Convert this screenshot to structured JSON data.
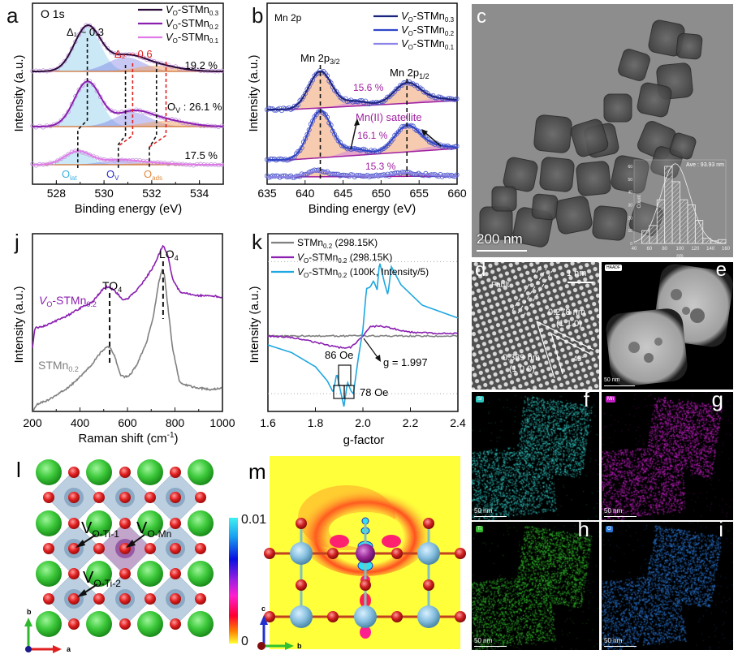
{
  "figure": {
    "panels": {
      "a": {
        "label": "a",
        "title": "O 1s"
      },
      "b": {
        "label": "b",
        "title": "Mn 2p"
      },
      "c": {
        "label": "c",
        "scalebar": "200 nm"
      },
      "d": {
        "label": "d",
        "fault": "Fault",
        "scalebar": "1 nm",
        "d1": "0.278 nm",
        "hkl1": "(1 1 0)",
        "d2": "0.389 nm",
        "hkl2": "(1 0 0)",
        "angle": "45°"
      },
      "e": {
        "label": "e",
        "tag": "HAADF",
        "scalebar": "50 nm"
      },
      "f": {
        "label": "f",
        "tag": "Sr",
        "scalebar": "50 nm",
        "color": "#2ec4c0"
      },
      "g": {
        "label": "g",
        "tag": "Mn",
        "scalebar": "50 nm",
        "color": "#c01fc0"
      },
      "h": {
        "label": "h",
        "tag": "Ti",
        "scalebar": "50 nm",
        "color": "#2fb82a"
      },
      "i": {
        "label": "i",
        "tag": "O",
        "scalebar": "50 nm",
        "color": "#2a78d8"
      },
      "j": {
        "label": "j"
      },
      "k": {
        "label": "k"
      },
      "l": {
        "label": "l",
        "vac1": "V",
        "vac1_sub": "O-Ti-1",
        "vac2": "V",
        "vac2_sub": "O-Mn",
        "vac3": "V",
        "vac3_sub": "O-Ti-2",
        "axis_b": "b",
        "axis_a": "a"
      },
      "m": {
        "label": "m",
        "cbar_max": "0.01",
        "cbar_min": "0",
        "axis_c": "c",
        "axis_b": "b"
      }
    }
  },
  "chart_data": [
    {
      "id": "a",
      "type": "line",
      "title": "O 1s",
      "xlabel": "Binding energy (eV)",
      "ylabel": "Intensity (a.u.)",
      "xlim": [
        527,
        535
      ],
      "xticks": [
        "528",
        "530",
        "532",
        "534"
      ],
      "xtick_values": [
        528,
        530,
        532,
        534
      ],
      "legend": [
        {
          "name": "VO-STMn0.3",
          "main": "V",
          "sub1": "O",
          "mid": "-STMn",
          "sub2": "0.3",
          "color": "#2a0a3a"
        },
        {
          "name": "VO-STMn0.2",
          "main": "V",
          "sub1": "O",
          "mid": "-STMn",
          "sub2": "0.2",
          "color": "#8a1fb0"
        },
        {
          "name": "VO-STMn0.1",
          "main": "V",
          "sub1": "O",
          "mid": "-STMn",
          "sub2": "0.1",
          "color": "#e07ae8"
        }
      ],
      "legend_position": "top-right",
      "series": [
        {
          "name": "VO-STMn0.3",
          "offset": 2,
          "O_lat": 529.3,
          "O_V": 530.9,
          "O_ads": 532.2,
          "peak_height": 1.0,
          "color": "#2a0a3a"
        },
        {
          "name": "VO-STMn0.2",
          "offset": 1,
          "O_lat": 529.3,
          "O_V": 531.2,
          "O_ads": 532.6,
          "peak_height": 1.0,
          "color": "#8a1fb0"
        },
        {
          "name": "VO-STMn0.1",
          "offset": 0,
          "O_lat": 528.9,
          "O_V": 530.6,
          "O_ads": 531.9,
          "peak_height": 0.55,
          "color": "#e07ae8"
        }
      ],
      "annotations": {
        "delta1": "Δ₁ ~ 0.3",
        "delta2": "Δ₂ ~ 0.6",
        "pct_top": "19.2 %",
        "pct_mid": "O_V : 26.1 %",
        "pct_mid_main": "O",
        "pct_mid_sub": "V",
        "pct_mid_rest": " : 26.1 %",
        "pct_bot": "17.5 %",
        "olat": "O",
        "olat_sub": "lat",
        "ov": "O",
        "ov_sub": "V",
        "oads": "O",
        "oads_sub": "ads"
      }
    },
    {
      "id": "b",
      "type": "line",
      "title": "Mn 2p",
      "xlabel": "Binding energy (eV)",
      "ylabel": "Intensity (a.u.)",
      "xlim": [
        635,
        660
      ],
      "xticks": [
        "635",
        "640",
        "645",
        "650",
        "655",
        "660"
      ],
      "xtick_values": [
        635,
        640,
        645,
        650,
        655,
        660
      ],
      "legend": [
        {
          "name": "VO-STMn0.3",
          "main": "V",
          "sub1": "O",
          "mid": "-STMn",
          "sub2": "0.3",
          "color": "#1a237e"
        },
        {
          "name": "VO-STMn0.2",
          "main": "V",
          "sub1": "O",
          "mid": "-STMn",
          "sub2": "0.2",
          "color": "#2f46c8"
        },
        {
          "name": "VO-STMn0.1",
          "main": "V",
          "sub1": "O",
          "mid": "-STMn",
          "sub2": "0.1",
          "color": "#8c84e6"
        }
      ],
      "legend_position": "top-right",
      "series": [
        {
          "name": "VO-STMn0.3",
          "offset": 2,
          "p32": 642.0,
          "p12": 653.4,
          "height": 0.9,
          "satellite_pct": "15.6 %"
        },
        {
          "name": "VO-STMn0.2",
          "offset": 1,
          "p32": 642.0,
          "p12": 653.4,
          "height": 1.05,
          "satellite_pct": "16.1 %"
        },
        {
          "name": "VO-STMn0.1",
          "offset": 0,
          "p32": 641.8,
          "p12": 653.4,
          "height": 0.15,
          "satellite_pct": "15.3 %"
        }
      ],
      "annotations": {
        "p32_main": "Mn 2p",
        "p32_sub": "3/2",
        "p12_main": "Mn 2p",
        "p12_sub": "1/2",
        "satellite": "Mn(II) satellite"
      }
    },
    {
      "id": "c-inset",
      "type": "bar",
      "title": "Ave : 93.93 nm",
      "xlabel": "nm",
      "ylabel": "Count",
      "xlim": [
        40,
        160
      ],
      "ylim": [
        0,
        65
      ],
      "xticks": [
        "40",
        "60",
        "80",
        "100",
        "120",
        "140",
        "160"
      ],
      "yticks": [
        "0",
        "10",
        "20",
        "30",
        "40",
        "50",
        "60"
      ],
      "bins": [
        50,
        60,
        70,
        80,
        90,
        100,
        110,
        120,
        130,
        140,
        150
      ],
      "values": [
        10,
        14,
        34,
        60,
        48,
        34,
        30,
        18,
        4,
        2,
        3
      ],
      "bin_width": 10,
      "mean": 93.93
    },
    {
      "id": "j",
      "type": "line",
      "xlabel": "Raman shift (cm⁻¹)",
      "xlabel_main": "Raman shift (cm",
      "xlabel_sup": "-1",
      "xlabel_end": ")",
      "ylabel": "Intensity (a.u.)",
      "xlim": [
        200,
        1000
      ],
      "xticks": [
        "200",
        "400",
        "600",
        "800",
        "1000"
      ],
      "xtick_values": [
        200,
        400,
        600,
        800,
        1000
      ],
      "series": [
        {
          "name": "VO-STMn0.2",
          "main": "V",
          "sub1": "O",
          "mid": "-STMn",
          "sub2": "0.2",
          "color": "#8a1fb0",
          "x": [
            200,
            210,
            250,
            300,
            350,
            400,
            450,
            500,
            520,
            550,
            580,
            600,
            640,
            680,
            710,
            730,
            750,
            770,
            790,
            820,
            850,
            900,
            950,
            1000
          ],
          "y": [
            0.35,
            0.46,
            0.47,
            0.5,
            0.53,
            0.57,
            0.6,
            0.68,
            0.69,
            0.66,
            0.62,
            0.62,
            0.67,
            0.74,
            0.8,
            0.86,
            0.92,
            0.86,
            0.73,
            0.66,
            0.65,
            0.64,
            0.64,
            0.63
          ]
        },
        {
          "name": "STMn0.2",
          "main": "STMn",
          "sub2": "0.2",
          "color": "#808080",
          "x": [
            200,
            220,
            260,
            300,
            350,
            400,
            450,
            490,
            510,
            525,
            545,
            570,
            590,
            610,
            640,
            680,
            710,
            730,
            745,
            755,
            770,
            790,
            820,
            860,
            900,
            950,
            1000
          ],
          "y": [
            0.0,
            0.04,
            0.06,
            0.09,
            0.13,
            0.19,
            0.26,
            0.33,
            0.35,
            0.36,
            0.31,
            0.2,
            0.19,
            0.2,
            0.26,
            0.38,
            0.53,
            0.7,
            0.78,
            0.76,
            0.58,
            0.35,
            0.16,
            0.14,
            0.13,
            0.12,
            0.13
          ]
        }
      ],
      "annotations": {
        "to4": "TO",
        "to4_sub": "4",
        "to4_x": 525,
        "lo4": "LO",
        "lo4_sub": "4",
        "lo4_x": 750
      }
    },
    {
      "id": "k",
      "type": "line",
      "xlabel": "g-factor",
      "ylabel": "Intensity (a.u.)",
      "xlim": [
        1.6,
        2.4
      ],
      "xticks": [
        "1.6",
        "1.8",
        "2.0",
        "2.2",
        "2.4"
      ],
      "xtick_values": [
        1.6,
        1.8,
        2.0,
        2.2,
        2.4
      ],
      "legend_position": "top-left",
      "series": [
        {
          "name": "STMn0.2 (298.15K)",
          "main": "STMn",
          "sub2": "0.2",
          "rest": " (298.15K)",
          "color": "#808080",
          "x": [
            1.6,
            2.4
          ],
          "y": [
            0.0,
            0.0
          ]
        },
        {
          "name": "VO-STMn0.2 (298.15K)",
          "main": "V",
          "sub1": "O",
          "mid": "-STMn",
          "sub2": "0.2",
          "rest": " (298.15K)",
          "color": "#8a1fb0",
          "x": [
            1.6,
            1.7,
            1.8,
            1.9,
            1.95,
            1.99,
            2.03,
            2.07,
            2.12,
            2.2,
            2.3,
            2.4
          ],
          "y": [
            0.0,
            -0.01,
            -0.05,
            -0.09,
            -0.09,
            -0.02,
            0.07,
            0.08,
            0.06,
            0.03,
            0.02,
            0.02
          ]
        },
        {
          "name": "VO-STMn0.2 (100K, Intensity/5)",
          "main": "V",
          "sub1": "O",
          "mid": "-STMn",
          "sub2": "0.2",
          "rest": " (100K, Intensity/5)",
          "color": "#1ea7e0",
          "x": [
            1.6,
            1.7,
            1.8,
            1.85,
            1.875,
            1.89,
            1.9,
            1.92,
            1.935,
            1.95,
            1.96,
            1.98,
            2.0,
            2.015,
            2.03,
            2.045,
            2.06,
            2.07,
            2.09,
            2.105,
            2.12,
            2.16,
            2.25,
            2.4
          ],
          "y": [
            -0.07,
            -0.13,
            -0.24,
            -0.35,
            -0.44,
            -0.29,
            -0.38,
            -0.55,
            -0.36,
            -0.43,
            -0.45,
            -0.18,
            0.05,
            0.37,
            0.38,
            0.43,
            0.36,
            0.58,
            0.42,
            0.32,
            0.54,
            0.4,
            0.24,
            0.14
          ]
        }
      ],
      "annotations": {
        "g": "g = 1.997",
        "oe86": "86 Oe",
        "oe78": "78 Oe"
      }
    }
  ]
}
